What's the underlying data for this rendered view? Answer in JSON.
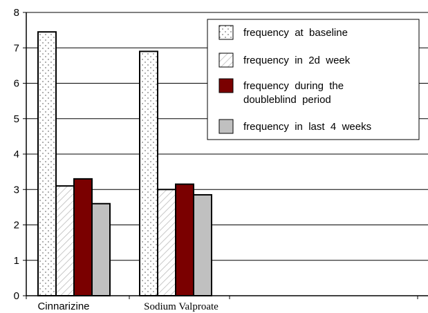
{
  "chart_data": {
    "type": "bar",
    "title": "",
    "xlabel": "",
    "ylabel": "",
    "ylim": [
      0,
      8
    ],
    "yticks": [
      "0",
      "1",
      "2",
      "3",
      "4",
      "5",
      "6",
      "7",
      "8"
    ],
    "grid": true,
    "legend_position": "top-right",
    "categories": [
      "Cinnarizine",
      "Sodium Valproate"
    ],
    "series": [
      {
        "name": "frequency at baseline",
        "values": [
          7.45,
          6.9
        ],
        "color": "#ffffff",
        "pattern": "dots"
      },
      {
        "name": "frequency in 2d week",
        "values": [
          3.1,
          3.0
        ],
        "color": "#ffffff",
        "pattern": "hatch"
      },
      {
        "name": "frequency during the doubleblind period",
        "values": [
          3.3,
          3.15
        ],
        "color": "#7a0000",
        "pattern": "solid"
      },
      {
        "name": "frequency in last 4 weeks",
        "values": [
          2.6,
          2.85
        ],
        "color": "#c0c0c0",
        "pattern": "solid"
      }
    ],
    "legend_lines": [
      [
        "frequency  at  baseline"
      ],
      [
        "frequency  in  2d  week"
      ],
      [
        "frequency  during  the",
        "doubleblind  period"
      ],
      [
        "frequency  in  last  4  weeks"
      ]
    ]
  }
}
